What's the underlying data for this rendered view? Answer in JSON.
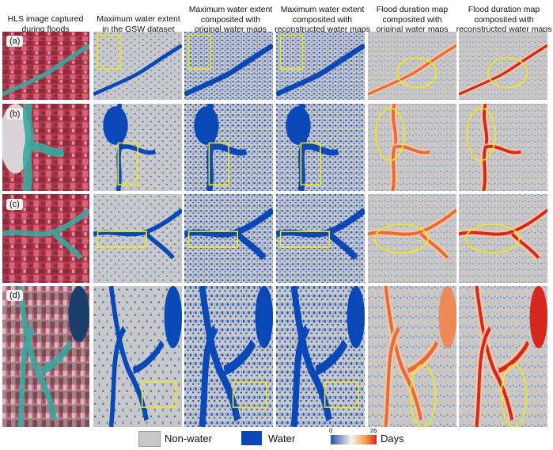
{
  "figure": {
    "columns": [
      {
        "line1": "HLS image captured",
        "line2": "during floods",
        "line3": ""
      },
      {
        "line1": "Maximum water extent",
        "line2": "in the GSW dataset",
        "line3": ""
      },
      {
        "line1": "Maximum water extent",
        "line2": "composited with",
        "line3": "original water maps"
      },
      {
        "line1": "Maximum water extent",
        "line2": "composited with",
        "line3": "reconstructed water maps"
      },
      {
        "line1": "Flood duration map",
        "line2": "composited with",
        "line3": "original water maps"
      },
      {
        "line1": "Flood duration map",
        "line2": "composited with",
        "line3": "reconstructed water maps"
      }
    ],
    "rows": [
      "(a)",
      "(b)",
      "(c)",
      "(d)"
    ]
  },
  "legend": {
    "nonwater_label": "Non-water",
    "water_label": "Water",
    "days_label": "Days",
    "scale_min": "0",
    "scale_max": "26",
    "colors": {
      "nonwater": "#c8c8c8",
      "water": "#0a48b8",
      "duration_low": "#2a4fa8",
      "duration_mid": "#f4f4f0",
      "duration_high": "#d7261e",
      "highlight": "#f0e61e",
      "false_color_veg": "#c2284a",
      "false_color_water": "#3aa7a0"
    }
  }
}
